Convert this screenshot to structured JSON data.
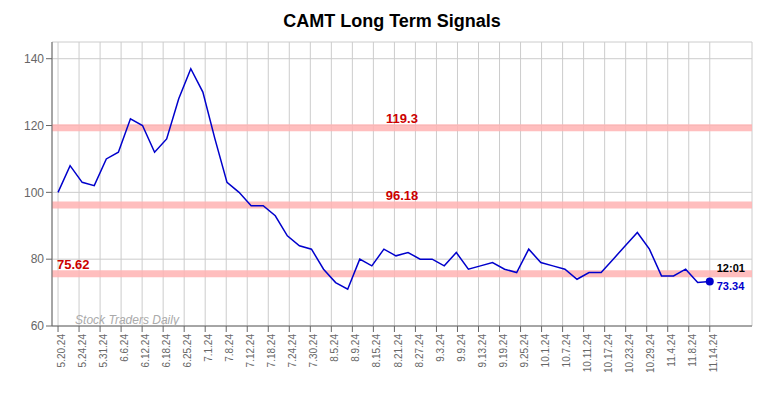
{
  "chart_data": {
    "type": "line",
    "title": "CAMT Long Term Signals",
    "color": "#0000cc",
    "grid": true,
    "x": [
      0,
      1,
      2,
      3,
      4,
      5,
      6,
      7,
      8,
      9,
      10,
      11,
      12,
      13,
      14,
      15,
      16,
      17,
      18,
      19,
      20,
      21,
      22,
      23,
      24,
      25,
      26,
      27,
      28,
      29,
      30,
      31,
      32,
      33,
      34,
      35,
      36,
      37,
      38,
      39,
      40,
      41,
      42,
      43,
      44,
      45,
      46,
      47,
      48,
      49,
      50,
      51,
      52,
      53,
      54
    ],
    "values": [
      100,
      108,
      103,
      102,
      110,
      112,
      122,
      120,
      112,
      116,
      128,
      137,
      130,
      116,
      103,
      100,
      96,
      96,
      93,
      87,
      84,
      83,
      77,
      73,
      71,
      80,
      78,
      83,
      81,
      82,
      80,
      80,
      78,
      82,
      77,
      78,
      79,
      77,
      76,
      83,
      79,
      78,
      77,
      74,
      76,
      76,
      80,
      84,
      88,
      83,
      75,
      75,
      77,
      73,
      73.34
    ],
    "xlim": [
      -0.5,
      57.5
    ],
    "xticks": [
      {
        "value": 0,
        "label": "5.20.24"
      },
      {
        "value": 1.7419354838709677,
        "label": "5.24.24"
      },
      {
        "value": 3.4838709677419355,
        "label": "5.31.24"
      },
      {
        "value": 5.225806451612903,
        "label": "6.6.24"
      },
      {
        "value": 6.967741935483871,
        "label": "6.12.24"
      },
      {
        "value": 8.709677419354838,
        "label": "6.18.24"
      },
      {
        "value": 10.451612903225806,
        "label": "6.25.24"
      },
      {
        "value": 12.193548387096774,
        "label": "7.1.24"
      },
      {
        "value": 13.935483870967742,
        "label": "7.8.24"
      },
      {
        "value": 15.67741935483871,
        "label": "7.12.24"
      },
      {
        "value": 17.419354838709676,
        "label": "7.18.24"
      },
      {
        "value": 19.161290322580644,
        "label": "7.24.24"
      },
      {
        "value": 20.903225806451612,
        "label": "7.30.24"
      },
      {
        "value": 22.64516129032258,
        "label": "8.5.24"
      },
      {
        "value": 24.387096774193548,
        "label": "8.9.24"
      },
      {
        "value": 26.129032258064516,
        "label": "8.15.24"
      },
      {
        "value": 27.870967741935484,
        "label": "8.21.24"
      },
      {
        "value": 29.612903225806452,
        "label": "8.27.24"
      },
      {
        "value": 31.35483870967742,
        "label": "9.3.24"
      },
      {
        "value": 33.096774193548384,
        "label": "9.9.24"
      },
      {
        "value": 34.83870967741935,
        "label": "9.13.24"
      },
      {
        "value": 36.58064516129032,
        "label": "9.19.24"
      },
      {
        "value": 38.32258064516129,
        "label": "9.25.24"
      },
      {
        "value": 40.064516129032256,
        "label": "10.1.24"
      },
      {
        "value": 41.806451612903224,
        "label": "10.7.24"
      },
      {
        "value": 43.54838709677419,
        "label": "10.11.24"
      },
      {
        "value": 45.29032258064516,
        "label": "10.17.24"
      },
      {
        "value": 47.03225806451613,
        "label": "10.23.24"
      },
      {
        "value": 48.774193548387096,
        "label": "10.29.24"
      },
      {
        "value": 50.516129032258064,
        "label": "11.4.24"
      },
      {
        "value": 52.25806451612903,
        "label": "11.8.24"
      },
      {
        "value": 54,
        "label": "11.14.24"
      }
    ],
    "ylim": [
      60,
      145
    ],
    "yticks": [
      60,
      80,
      100,
      120,
      140
    ],
    "hlines": [
      {
        "value": 119.3,
        "label": "119.3"
      },
      {
        "value": 96.18,
        "label": "96.18"
      },
      {
        "value": 75.62,
        "label": "75.62"
      }
    ],
    "hline_color": "#ffb3b3",
    "hline_label_color": "#cc0000",
    "last_point": {
      "label": "12:01",
      "value_label": "73.34"
    },
    "watermark": "Stock Traders Daily",
    "watermark_color": "#aaaaaa"
  }
}
